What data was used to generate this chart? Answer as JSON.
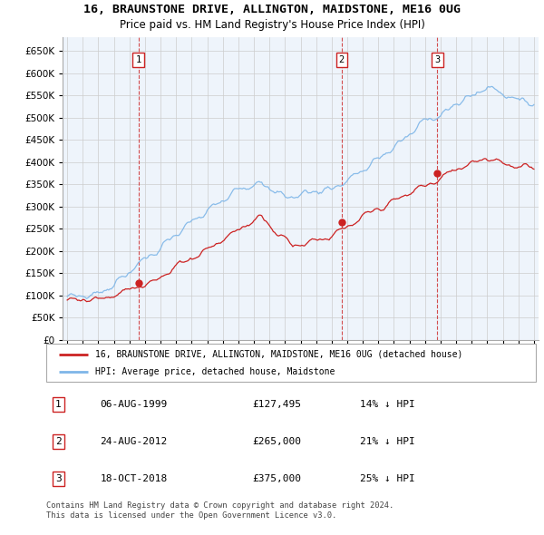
{
  "title": "16, BRAUNSTONE DRIVE, ALLINGTON, MAIDSTONE, ME16 0UG",
  "subtitle": "Price paid vs. HM Land Registry's House Price Index (HPI)",
  "ylabel_ticks": [
    "£0",
    "£50K",
    "£100K",
    "£150K",
    "£200K",
    "£250K",
    "£300K",
    "£350K",
    "£400K",
    "£450K",
    "£500K",
    "£550K",
    "£600K",
    "£650K"
  ],
  "ytick_values": [
    0,
    50000,
    100000,
    150000,
    200000,
    250000,
    300000,
    350000,
    400000,
    450000,
    500000,
    550000,
    600000,
    650000
  ],
  "ylim": [
    0,
    680000
  ],
  "hpi_color": "#7EB6E8",
  "price_color": "#CC2222",
  "sale_years": [
    1999.58,
    2012.64,
    2018.79
  ],
  "sale_prices": [
    127495,
    265000,
    375000
  ],
  "sale_labels": [
    "1",
    "2",
    "3"
  ],
  "legend_entries": [
    "16, BRAUNSTONE DRIVE, ALLINGTON, MAIDSTONE, ME16 0UG (detached house)",
    "HPI: Average price, detached house, Maidstone"
  ],
  "table_rows": [
    {
      "num": "1",
      "date": "06-AUG-1999",
      "price": "£127,495",
      "hpi": "14% ↓ HPI"
    },
    {
      "num": "2",
      "date": "24-AUG-2012",
      "price": "£265,000",
      "hpi": "21% ↓ HPI"
    },
    {
      "num": "3",
      "date": "18-OCT-2018",
      "price": "£375,000",
      "hpi": "25% ↓ HPI"
    }
  ],
  "footer": "Contains HM Land Registry data © Crown copyright and database right 2024.\nThis data is licensed under the Open Government Licence v3.0.",
  "grid_color": "#cccccc",
  "x_start_year": 1995,
  "x_end_year": 2025
}
